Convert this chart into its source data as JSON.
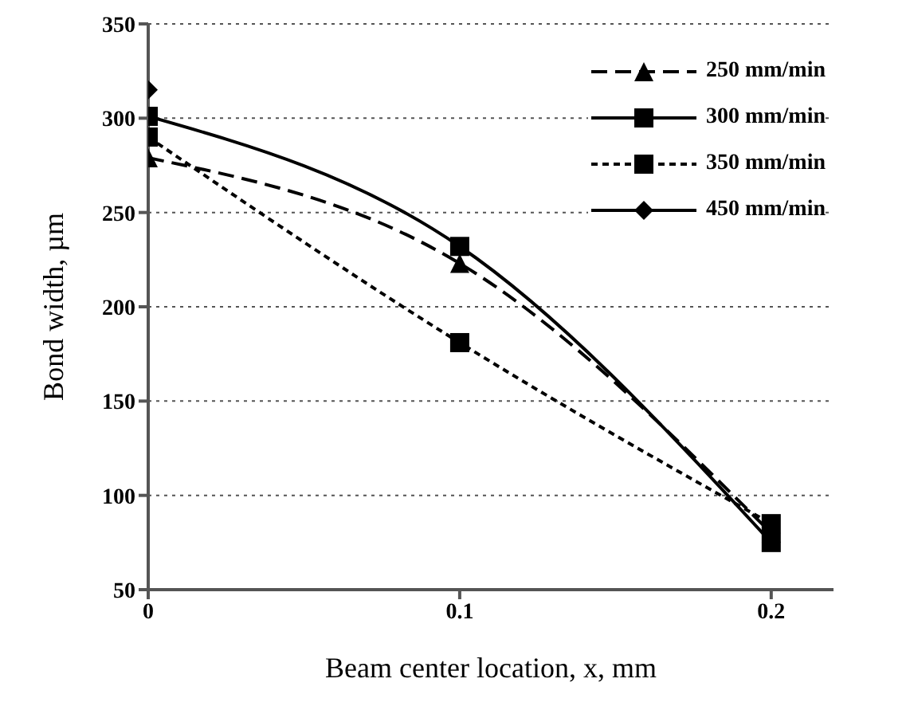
{
  "chart_data": {
    "type": "line",
    "xlabel": "Beam center location, x, mm",
    "ylabel": "Bond width, µm",
    "x": [
      0,
      0.1,
      0.2
    ],
    "series": [
      {
        "name": "250 mm/min",
        "color": "#000000",
        "marker": "triangle",
        "line_style": "dashed",
        "values": [
          279,
          223,
          80
        ]
      },
      {
        "name": "300 mm/min",
        "color": "#000000",
        "marker": "square",
        "line_style": "solid",
        "values": [
          301,
          232,
          75
        ]
      },
      {
        "name": "350 mm/min",
        "color": "#000000",
        "marker": "square",
        "line_style": "dotted",
        "values": [
          290,
          181,
          85
        ]
      },
      {
        "name": "450 mm/min",
        "color": "#000000",
        "marker": "diamond",
        "line_style": "solid",
        "values": [
          315,
          null,
          null
        ]
      }
    ],
    "xlim": [
      0,
      0.22
    ],
    "xticks": [
      0,
      0.1,
      0.2
    ],
    "ylim": [
      50,
      350
    ],
    "yticks": [
      50,
      100,
      150,
      200,
      250,
      300,
      350
    ],
    "grid": "y",
    "legend": "top right"
  }
}
